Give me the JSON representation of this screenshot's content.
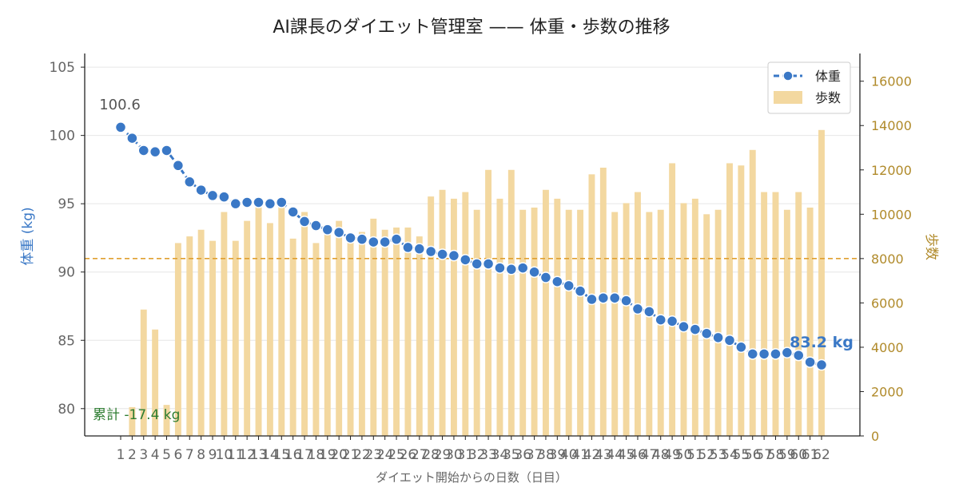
{
  "chart_data": {
    "type": "bar+line",
    "title": "AI課長のダイエット管理室 —— 体重・歩数の推移",
    "xlabel": "ダイエット開始からの日数（日目）",
    "ylabel_left": "体重 (kg)",
    "ylabel_right": "歩数",
    "ylim_left": [
      78,
      106
    ],
    "ylim_right": [
      0,
      17250
    ],
    "yticks_left": [
      80,
      85,
      90,
      95,
      100,
      105
    ],
    "yticks_right": [
      0,
      2000,
      4000,
      6000,
      8000,
      10000,
      12000,
      14000,
      16000
    ],
    "grid": "horizontal",
    "legend_position": "top-right",
    "legend": {
      "weight": "体重",
      "steps": "歩数"
    },
    "x": [
      1,
      2,
      3,
      4,
      5,
      6,
      7,
      8,
      9,
      10,
      11,
      12,
      13,
      14,
      15,
      16,
      17,
      18,
      19,
      20,
      21,
      22,
      23,
      24,
      25,
      26,
      27,
      28,
      29,
      30,
      31,
      32,
      33,
      34,
      35,
      36,
      37,
      38,
      39,
      40,
      41,
      42,
      43,
      44,
      45,
      46,
      47,
      48,
      49,
      50,
      51,
      52,
      53,
      54,
      55,
      56,
      57,
      58,
      59,
      60,
      61,
      62
    ],
    "weight": [
      100.6,
      99.8,
      98.9,
      98.8,
      98.9,
      97.8,
      96.6,
      96.0,
      95.6,
      95.5,
      95.0,
      95.1,
      95.1,
      95.0,
      95.1,
      94.4,
      93.7,
      93.4,
      93.1,
      92.9,
      92.5,
      92.4,
      92.2,
      92.2,
      92.4,
      91.8,
      91.7,
      91.5,
      91.3,
      91.2,
      90.9,
      90.6,
      90.6,
      90.3,
      90.2,
      90.3,
      90.0,
      89.6,
      89.3,
      89.0,
      88.6,
      88.0,
      88.1,
      88.1,
      87.9,
      87.3,
      87.1,
      86.5,
      86.4,
      86.0,
      85.8,
      85.5,
      85.2,
      85.0,
      84.5,
      84.0,
      84.0,
      84.0,
      84.1,
      83.9,
      83.4,
      83.2
    ],
    "steps": [
      0,
      1300,
      5700,
      4800,
      1400,
      8700,
      9000,
      9300,
      8800,
      10100,
      8800,
      9700,
      10400,
      9600,
      10500,
      8900,
      10100,
      8700,
      9500,
      9700,
      8800,
      9200,
      9800,
      9300,
      9400,
      9400,
      9000,
      10800,
      11100,
      10700,
      11000,
      10200,
      12000,
      10700,
      12000,
      10200,
      10300,
      11100,
      10700,
      10200,
      10200,
      11800,
      12100,
      10100,
      10500,
      11000,
      10100,
      10200,
      12300,
      10500,
      10700,
      10000,
      10200,
      12300,
      12200,
      12900,
      11000,
      11000,
      10200,
      11000,
      10300,
      13800
    ],
    "reference_line_steps": 8000,
    "annotations": {
      "start_label": "100.6",
      "end_label": "83.2 kg",
      "total_label": "累計 -17.4 kg"
    },
    "colors": {
      "weight": "#3a78c6",
      "steps": "#f3d8a0",
      "reference": "#e0a030",
      "right_axis": "#b08a2a",
      "left_label": "#3a78c6",
      "total_label": "#2e7d32",
      "end_label": "#3a78c6"
    }
  }
}
